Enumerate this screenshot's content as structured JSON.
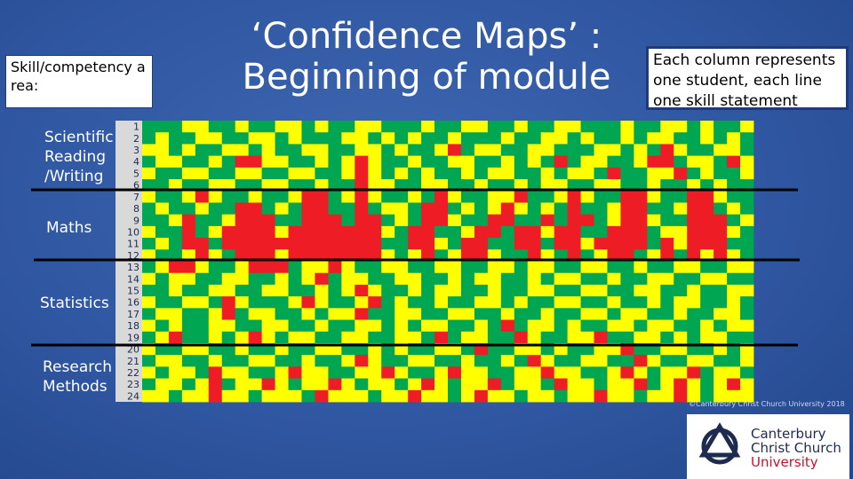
{
  "slide": {
    "title": [
      "‘Confidence Maps’ :",
      "Beginning of module"
    ],
    "area_header": "Skill/competency area:",
    "areas": [
      "Scientific Reading /Writing",
      "Maths",
      "Statistics",
      "Research Methods"
    ],
    "note": "Each column represents one student, each line one skill statement",
    "copyright": "©Canterbury Christ Church University 2018",
    "logo": [
      "Canterbury",
      "Christ Church",
      "University"
    ]
  },
  "heatmap": {
    "row_labels": [
      "1",
      "2",
      "3",
      "4",
      "5",
      "6",
      "7",
      "8",
      "9",
      "10",
      "11",
      "12",
      "13",
      "14",
      "15",
      "16",
      "17",
      "18",
      "19",
      "20",
      "21",
      "22",
      "23",
      "24"
    ],
    "colors": {
      "G": "#00a651",
      "Y": "#ffff00",
      "R": "#ee1c24"
    },
    "rows": [
      "GGGYYGGYGGYYGYGGYYGGGYGGYYGGYGGYYGGGYGGYYGYGGY",
      "GYGGYYGGYYGYGGGYYGYGYGGYGGGYGGYYGYGGYGYYGGYGYG",
      "YYGYGGYYGYGGYYGGYYGYGGYRGYYGGYYGGGYYGYGRYGGYYG",
      "GYYGGYGRRYYGGYGYRYGGYGGYYGGYGYGRGYYGGYRRGYYGRY",
      "YGGYYGGYYGGYYGGYRYGYGYGGYGYYGGYGYYGRGGYYRGYGGY",
      "GGYGGYYGGYYGGYGGRYYGGYYGGYGGYGYYGGYYGGYGGYGYGG",
      "YGGYRYGGYGGYRRGYRYGGYGRYGGYYRGGYRYGGRRYGGRRYGG",
      "GYGGYGGRRGYGRRGGRGYYGRRGYGYRYGYGRGGYRRGGYRRGYG",
      "GGYRGGYRRRGGRRRGRRGYGRRYGGRRGGRGRRGYRRYGGRRRGY",
      "YGGRGYRRRRYRRRRRRRYGRRGGYRRGRRYRRGGRRRGYYRRRYG",
      "GYGRRGRRRRRRRRRRRRGGRRYGRRGGRRGRRYRRRRGRYRRRGG",
      "YGGYRYGRRRYRRRRRRRYGYRGYRRYGGRYGRGYRRGYRGRYRYG",
      "GYRRYGGYRRRGYYRYGGYYGGYYGGYYGYYGGYYGGYGGYYGGYY",
      "YGYYGGYYGGYGYRGYYGGYYGGYGYYGGYGYYGGYGGYYGGYYGG",
      "GGYGGYYGGYYGGYGYRYGGYGYYGGYGGYYGGYYGGYYGGYGGYY",
      "YGGYYGRYGGGYRYGGYRGYGGYGGYYGYGGYYGGYGGYGYYGGYG",
      "GYYGGYRGYYGGYGYYRGGYYGGYYGGYGGYGGYYGYYGGYGGYYG",
      "YGYGGYYGGYYGGYGGYYGYGYYGGYGRGYYGYGGYYGYYGGYGYY",
      "GYRGGYGYRYGYYGGYYGGYYGRGYYGGRYGGYYRGGYYGYGYYGG",
      "YGGYYGGYGGYGGYYGGYGYGGYYGRGGYYGYGGYYRGGYYGGYGY",
      "GYYGGYGGYYGGYGGYRYGGYYGGYGGYGRYGGYYGGRYGGYYGGY",
      "YGYYGRYYGGYRYYGGYYRYGGYRYYGGYYRYYGGYRYGYYRGYYG",
      "GYYGYRGYYRYGYYRYGYYGYRYGYYRGYYGRYYGYYRGYRYGYRY",
      "YYGYYRYYGYYYGRYYYGYYRYYGYRYYGYYGYYRYYGYYRYGYYY"
    ]
  }
}
